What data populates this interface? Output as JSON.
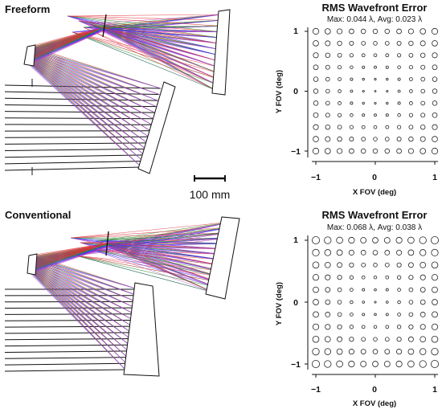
{
  "panels": [
    {
      "design_label": "Freeform",
      "chart_data": {
        "type": "scatter",
        "title": "RMS Wavefront Error",
        "subtitle": "Max: 0.044 λ, Avg: 0.023 λ",
        "xlabel": "X FOV (deg)",
        "ylabel": "Y FOV (deg)",
        "xlim": [
          -1,
          1
        ],
        "ylim": [
          -1,
          1
        ],
        "x_ticks": [
          "−1",
          "0",
          "1"
        ],
        "y_ticks": [
          "1",
          "0",
          "−1"
        ],
        "grid_x": [
          -1,
          -0.8,
          -0.6,
          -0.4,
          -0.2,
          0,
          0.2,
          0.4,
          0.6,
          0.8,
          1
        ],
        "grid_y": [
          1,
          0.8,
          0.6,
          0.4,
          0.2,
          0,
          -0.2,
          -0.4,
          -0.6,
          -0.8,
          -1
        ],
        "rms_max": 0.044,
        "rms_min": 0.003,
        "rms_scale": "quadratic_from_center"
      }
    },
    {
      "design_label": "Conventional",
      "chart_data": {
        "type": "scatter",
        "title": "RMS Wavefront Error",
        "subtitle": "Max: 0.068 λ, Avg: 0.038 λ",
        "xlabel": "X FOV (deg)",
        "ylabel": "Y FOV (deg)",
        "xlim": [
          -1,
          1
        ],
        "ylim": [
          -1,
          1
        ],
        "x_ticks": [
          "−1",
          "0",
          "1"
        ],
        "y_ticks": [
          "1",
          "0",
          "−1"
        ],
        "grid_x": [
          -1,
          -0.8,
          -0.6,
          -0.4,
          -0.2,
          0,
          0.2,
          0.4,
          0.6,
          0.8,
          1
        ],
        "grid_y": [
          1,
          0.8,
          0.6,
          0.4,
          0.2,
          0,
          -0.2,
          -0.4,
          -0.6,
          -0.8,
          -1
        ],
        "rms_max": 0.068,
        "rms_min": 0.004,
        "rms_scale": "quadratic_from_center"
      }
    }
  ],
  "scale_bar_label": "100 mm",
  "colors": {
    "ray_red": "#e0303a",
    "ray_green": "#2e8b2e",
    "ray_blue": "#3a3aff",
    "ray_magenta": "#c040c0",
    "ink": "#111111"
  }
}
